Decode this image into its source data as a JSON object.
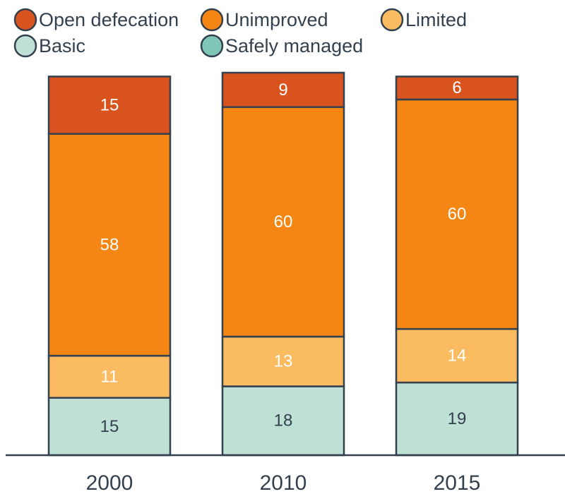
{
  "chart_data": {
    "type": "bar",
    "stacked": true,
    "categories": [
      "2000",
      "2010",
      "2015"
    ],
    "series": [
      {
        "name": "Basic",
        "color": "#bfe0d5",
        "label_color": "dark",
        "values": [
          15,
          18,
          19
        ]
      },
      {
        "name": "Limited",
        "color": "#fbbb61",
        "label_color": "light",
        "values": [
          11,
          13,
          14
        ]
      },
      {
        "name": "Unimproved",
        "color": "#f58613",
        "label_color": "light",
        "values": [
          58,
          60,
          60
        ]
      },
      {
        "name": "Open defecation",
        "color": "#d9531e",
        "label_color": "light",
        "values": [
          15,
          9,
          6
        ]
      }
    ],
    "safely_managed": {
      "name": "Safely managed",
      "color": "#80c6b7"
    },
    "legend": {
      "placement": "top",
      "order": [
        "Open defecation",
        "Unimproved",
        "Limited",
        "Basic",
        "Safely managed"
      ]
    },
    "title": "",
    "xlabel": "",
    "ylabel": "",
    "ylim": [
      0,
      100
    ],
    "grid": false,
    "bar_stroke": "#33414f"
  }
}
